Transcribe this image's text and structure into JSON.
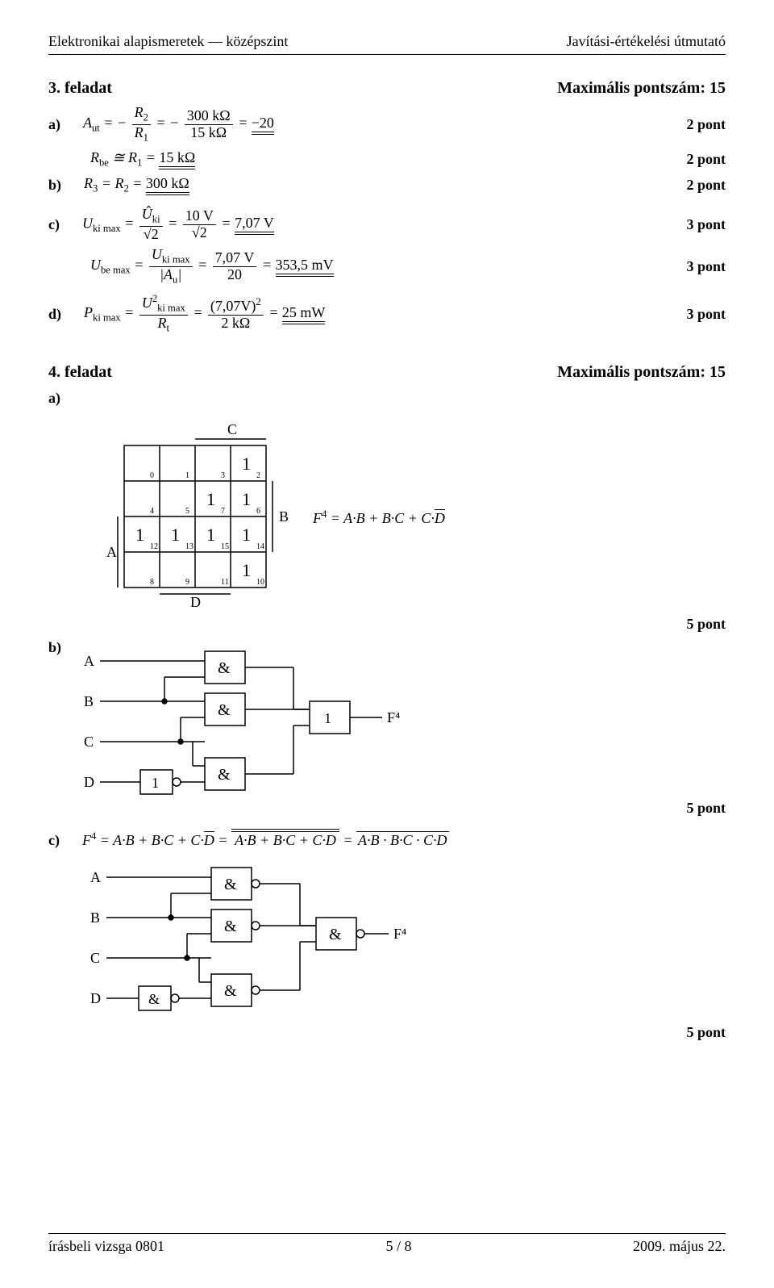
{
  "header": {
    "left": "Elektronikai alapismeretek — középszint",
    "right": "Javítási-értékelési útmutató"
  },
  "footer": {
    "left": "írásbeli vizsga 0801",
    "center": "5 / 8",
    "right": "2009. május 22."
  },
  "task3": {
    "title": "3. feladat",
    "max": "Maximális pontszám: 15",
    "a": {
      "label": "a)",
      "expr": "$A_{ut}=-\\dfrac{R_2}{R_1}=-\\dfrac{300\\,k\\Omega}{15\\,k\\Omega}=\\underline{\\underline{-20}}$",
      "pts": "2 pont"
    },
    "a2": {
      "expr": "$R_{be}\\cong R_1=\\underline{\\underline{15\\,k\\Omega}}$",
      "pts": "2 pont"
    },
    "b": {
      "label": "b)",
      "expr": "$R_3=R_2=\\underline{\\underline{300\\,k\\Omega}}$",
      "pts": "2 pont"
    },
    "c": {
      "label": "c)",
      "expr": "$U_{ki\\,max}=\\dfrac{\\hat U_{ki}}{\\sqrt2}=\\dfrac{10\\,V}{\\sqrt2}=\\underline{\\underline{7{,}07\\,V}}$",
      "pts": "3 pont"
    },
    "c2": {
      "expr": "$U_{be\\,max}=\\dfrac{U_{ki\\,max}}{|A_u|}=\\dfrac{7{,}07\\,V}{20}=\\underline{\\underline{353{,}5\\,mV}}$",
      "pts": "3 pont"
    },
    "d": {
      "label": "d)",
      "expr": "$P_{ki\\,max}=\\dfrac{U_{ki\\,max}^2}{R_t}=\\dfrac{(7{,}07V)^2}{2\\,k\\Omega}=\\underline{\\underline{25\\,mW}}$",
      "pts": "3 pont"
    }
  },
  "task4": {
    "title": "4. feladat",
    "max": "Maximális pontszám: 15",
    "a_label": "a)",
    "b_label": "b)",
    "c_label": "c)",
    "kmap": {
      "var_top": "C",
      "var_left": "A",
      "var_right": "B",
      "var_bottom": "D",
      "indices": [
        0,
        1,
        3,
        2,
        4,
        5,
        7,
        6,
        12,
        13,
        15,
        14,
        8,
        9,
        11,
        10
      ],
      "ones": [
        2,
        7,
        6,
        12,
        13,
        15,
        14,
        10
      ]
    },
    "f_expr": "F⁴ = A·B + B·C + C·D̅",
    "a_pts": "5 pont",
    "b_pts": "5 pont",
    "c_expr": "F⁴ = A·B + B·C + C·D̅ = A·B + B·C + C·D̅ = A·B · B·C · C·D̅",
    "c_pts": "5 pont",
    "gate_labels": {
      "and": "&",
      "or": "1",
      "nand": "&",
      "out_label": "F⁴",
      "inputs": [
        "A",
        "B",
        "C",
        "D"
      ]
    }
  },
  "colors": {
    "stroke": "#000000",
    "bg": "#ffffff"
  }
}
